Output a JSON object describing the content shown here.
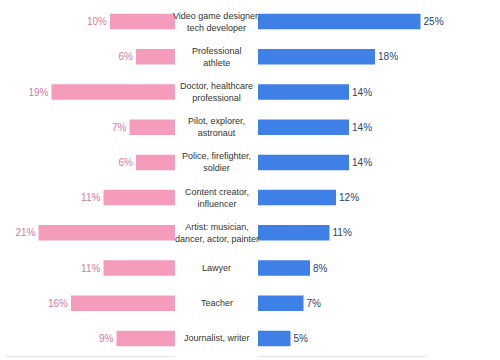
{
  "chart_data": {
    "type": "bar",
    "orientation": "horizontal",
    "categories": [
      "Video game designer,\ntech developer",
      "Professional\nathlete",
      "Doctor, healthcare\nprofessional",
      "Pilot, explorer,\nastronaut",
      "Police, firefighter,\nsoldier",
      "Content creator,\ninfluencer",
      "Artist: musician,\ndancer, actor, painter",
      "Lawyer",
      "Teacher",
      "Journalist, writer"
    ],
    "series": [
      {
        "color": "#f59bbb",
        "values": [
          10,
          6,
          19,
          7,
          6,
          11,
          21,
          11,
          16,
          9
        ],
        "value_labels": [
          "10%",
          "6%",
          "19%",
          "7%",
          "6%",
          "11%",
          "21%",
          "11%",
          "16%",
          "9%"
        ]
      },
      {
        "color": "#3f80e6",
        "values": [
          25,
          18,
          14,
          14,
          14,
          12,
          11,
          8,
          7,
          5
        ],
        "value_labels": [
          "25%",
          "18%",
          "14%",
          "14%",
          "14%",
          "12%",
          "11%",
          "8%",
          "7%",
          "5%"
        ]
      }
    ],
    "xlim": [
      0,
      26
    ],
    "xticks": [],
    "data_labels": true,
    "tick_labels": false,
    "grid": false
  }
}
